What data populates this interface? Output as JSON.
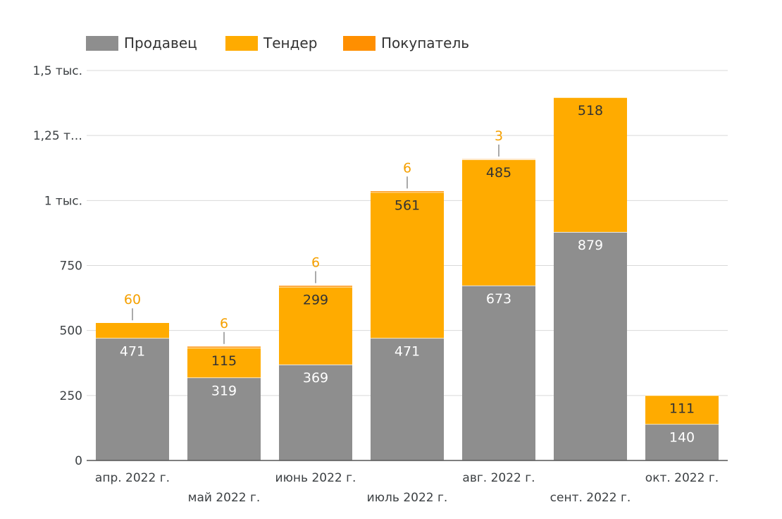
{
  "chart_data": {
    "type": "bar",
    "stacked": true,
    "title": "",
    "xlabel": "",
    "ylabel": "",
    "categories": [
      "апр. 2022 г.",
      "май 2022 г.",
      "июнь 2022 г.",
      "июль 2022 г.",
      "авг. 2022 г.",
      "сент. 2022 г.",
      "окт. 2022 г."
    ],
    "series": [
      {
        "name": "Продавец",
        "color": "#8e8e8e",
        "label_color": "#ffffff",
        "values": [
          471,
          319,
          369,
          471,
          673,
          879,
          140
        ]
      },
      {
        "name": "Тендер",
        "color": "#ffab00",
        "label_color": "#333333",
        "values": [
          60,
          115,
          299,
          561,
          485,
          518,
          111
        ]
      },
      {
        "name": "Покупатель",
        "color": "#ff8f00",
        "label_color": "#f5a000",
        "values": [
          0,
          6,
          6,
          6,
          3,
          0,
          0
        ]
      }
    ],
    "data_labels": [
      [
        "471",
        "319",
        "369",
        "471",
        "673",
        "879",
        "140"
      ],
      [
        "60",
        "115",
        "299",
        "561",
        "485",
        "518",
        "111"
      ],
      [
        "",
        "6",
        "6",
        "6",
        "3",
        "",
        ""
      ]
    ],
    "ylim": [
      0,
      1500
    ],
    "yticks": [
      0,
      250,
      500,
      750,
      1000,
      1250,
      1500
    ],
    "ytick_labels": [
      "0",
      "250",
      "500",
      "750",
      "1 тыс.",
      "1,25 т…",
      "1,5 тыс."
    ],
    "grid": true,
    "legend_position": "top-left",
    "colors": {
      "grid": "#d9d9d9",
      "axis": "#555555",
      "tick_text": "#3c4043",
      "separator": "#ffffff"
    }
  }
}
